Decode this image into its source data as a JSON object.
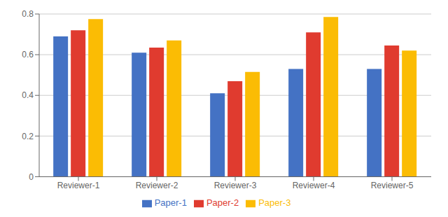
{
  "chart_data": {
    "type": "bar",
    "categories": [
      "Reviewer-1",
      "Reviewer-2",
      "Reviewer-3",
      "Reviewer-4",
      "Reviewer-5"
    ],
    "series": [
      {
        "name": "Paper-1",
        "color": "#4472C4",
        "values": [
          0.69,
          0.61,
          0.41,
          0.53,
          0.53
        ]
      },
      {
        "name": "Paper-2",
        "color": "#E03B2F",
        "values": [
          0.72,
          0.635,
          0.47,
          0.71,
          0.645
        ]
      },
      {
        "name": "Paper-3",
        "color": "#FBBC04",
        "values": [
          0.775,
          0.67,
          0.515,
          0.785,
          0.62
        ]
      }
    ],
    "ylim": [
      0,
      0.8
    ],
    "yticks": [
      0,
      0.2,
      0.4,
      0.6,
      0.8
    ],
    "grid": true,
    "legend": "bottom"
  }
}
